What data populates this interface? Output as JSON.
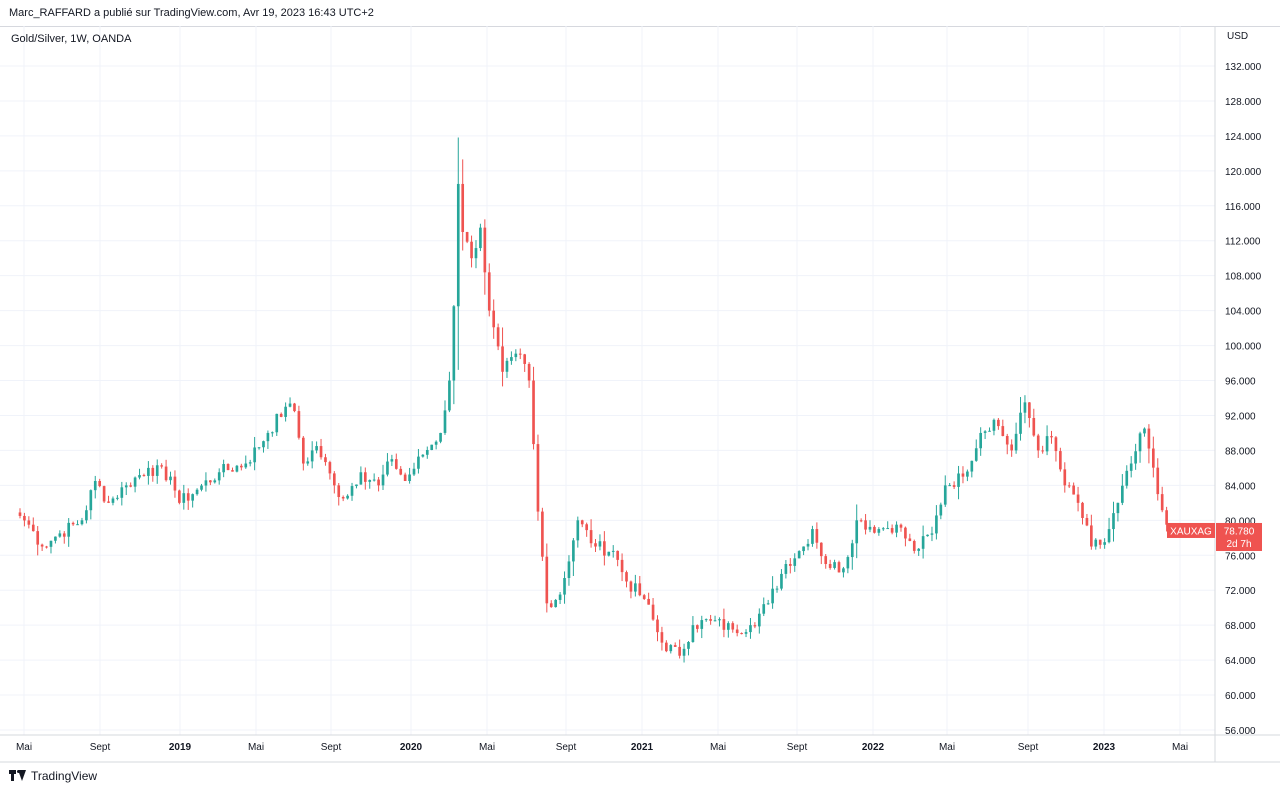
{
  "header": {
    "publisher_line": "Marc_RAFFARD a publié sur TradingView.com, Avr 19, 2023 16:43 UTC+2"
  },
  "chart_header": {
    "symbol_line": "Gold/Silver, 1W, OANDA",
    "currency": "USD"
  },
  "footer": {
    "brand": "TradingView"
  },
  "colors": {
    "up": "#26a69a",
    "down": "#ef5350",
    "grid": "#f0f3fa",
    "axis_text": "#131722",
    "label_bg": "#ef5350",
    "label_text": "#ffffff"
  },
  "chart_data": {
    "type": "candlestick",
    "timeframe": "1W",
    "ylim": [
      56.0,
      132.0
    ],
    "y_ticks": [
      "56.000",
      "60.000",
      "64.000",
      "68.000",
      "72.000",
      "76.000",
      "80.000",
      "84.000",
      "88.000",
      "92.000",
      "96.000",
      "100.000",
      "104.000",
      "108.000",
      "112.000",
      "116.000",
      "120.000",
      "124.000",
      "128.000",
      "132.000"
    ],
    "x_ticks": [
      "Mai",
      "Sept",
      "2019",
      "Mai",
      "Sept",
      "2020",
      "Mai",
      "Sept",
      "2021",
      "Mai",
      "Sept",
      "2022",
      "Mai",
      "Sept",
      "2023",
      "Mai"
    ],
    "last_price_label": {
      "symbol": "XAUXAG",
      "price": "78.780",
      "countdown": "2d 7h"
    },
    "anchors": [
      {
        "date": "2018-04-23",
        "close": 80.5
      },
      {
        "date": "2018-05-07",
        "close": 79.5
      },
      {
        "date": "2018-05-28",
        "close": 77.0
      },
      {
        "date": "2018-06-25",
        "close": 78.5
      },
      {
        "date": "2018-07-30",
        "close": 80.0
      },
      {
        "date": "2018-08-20",
        "close": 84.5
      },
      {
        "date": "2018-09-10",
        "close": 82.0
      },
      {
        "date": "2018-10-08",
        "close": 84.0
      },
      {
        "date": "2018-11-12",
        "close": 86.0
      },
      {
        "date": "2018-12-17",
        "close": 85.0
      },
      {
        "date": "2018-12-31",
        "close": 82.0
      },
      {
        "date": "2019-01-28",
        "close": 83.5
      },
      {
        "date": "2019-03-04",
        "close": 85.5
      },
      {
        "date": "2019-04-15",
        "close": 86.5
      },
      {
        "date": "2019-05-20",
        "close": 90.0
      },
      {
        "date": "2019-06-17",
        "close": 93.0
      },
      {
        "date": "2019-07-01",
        "close": 92.5
      },
      {
        "date": "2019-07-15",
        "close": 86.5
      },
      {
        "date": "2019-08-05",
        "close": 88.5
      },
      {
        "date": "2019-09-02",
        "close": 84.0
      },
      {
        "date": "2019-09-16",
        "close": 82.5
      },
      {
        "date": "2019-10-14",
        "close": 85.5
      },
      {
        "date": "2019-11-11",
        "close": 84.0
      },
      {
        "date": "2019-12-02",
        "close": 87.0
      },
      {
        "date": "2019-12-23",
        "close": 84.5
      },
      {
        "date": "2020-01-20",
        "close": 87.5
      },
      {
        "date": "2020-02-17",
        "close": 90.0
      },
      {
        "date": "2020-03-02",
        "close": 96.0
      },
      {
        "date": "2020-03-09",
        "close": 104.5
      },
      {
        "date": "2020-03-16",
        "close": 118.5
      },
      {
        "date": "2020-03-23",
        "close": 113.0
      },
      {
        "date": "2020-04-06",
        "close": 110.0
      },
      {
        "date": "2020-04-20",
        "close": 113.5
      },
      {
        "date": "2020-05-04",
        "close": 104.0
      },
      {
        "date": "2020-05-25",
        "close": 97.0
      },
      {
        "date": "2020-06-22",
        "close": 99.0
      },
      {
        "date": "2020-07-06",
        "close": 96.0
      },
      {
        "date": "2020-07-20",
        "close": 81.0
      },
      {
        "date": "2020-08-03",
        "close": 70.5
      },
      {
        "date": "2020-08-24",
        "close": 71.5
      },
      {
        "date": "2020-09-21",
        "close": 80.0
      },
      {
        "date": "2020-10-19",
        "close": 77.0
      },
      {
        "date": "2020-11-16",
        "close": 76.5
      },
      {
        "date": "2020-12-07",
        "close": 73.0
      },
      {
        "date": "2021-01-04",
        "close": 71.0
      },
      {
        "date": "2021-02-01",
        "close": 66.0
      },
      {
        "date": "2021-03-01",
        "close": 64.5
      },
      {
        "date": "2021-03-22",
        "close": 68.0
      },
      {
        "date": "2021-04-19",
        "close": 68.5
      },
      {
        "date": "2021-05-24",
        "close": 67.5
      },
      {
        "date": "2021-06-21",
        "close": 68.0
      },
      {
        "date": "2021-07-19",
        "close": 70.5
      },
      {
        "date": "2021-08-16",
        "close": 75.0
      },
      {
        "date": "2021-09-13",
        "close": 77.0
      },
      {
        "date": "2021-09-27",
        "close": 79.0
      },
      {
        "date": "2021-10-18",
        "close": 75.0
      },
      {
        "date": "2021-11-15",
        "close": 74.5
      },
      {
        "date": "2021-12-06",
        "close": 80.0
      },
      {
        "date": "2022-01-10",
        "close": 79.0
      },
      {
        "date": "2022-02-07",
        "close": 79.5
      },
      {
        "date": "2022-03-07",
        "close": 76.5
      },
      {
        "date": "2022-04-04",
        "close": 78.5
      },
      {
        "date": "2022-04-25",
        "close": 84.0
      },
      {
        "date": "2022-05-23",
        "close": 85.0
      },
      {
        "date": "2022-06-20",
        "close": 90.0
      },
      {
        "date": "2022-07-11",
        "close": 91.5
      },
      {
        "date": "2022-08-08",
        "close": 88.0
      },
      {
        "date": "2022-08-29",
        "close": 93.5
      },
      {
        "date": "2022-09-19",
        "close": 88.0
      },
      {
        "date": "2022-10-10",
        "close": 89.5
      },
      {
        "date": "2022-10-31",
        "close": 84.0
      },
      {
        "date": "2022-11-21",
        "close": 82.0
      },
      {
        "date": "2022-12-12",
        "close": 77.0
      },
      {
        "date": "2023-01-02",
        "close": 77.5
      },
      {
        "date": "2023-01-23",
        "close": 82.0
      },
      {
        "date": "2023-02-13",
        "close": 86.5
      },
      {
        "date": "2023-03-06",
        "close": 90.5
      },
      {
        "date": "2023-03-27",
        "close": 83.0
      },
      {
        "date": "2023-04-10",
        "close": 79.5
      },
      {
        "date": "2023-04-17",
        "close": 78.78
      }
    ]
  }
}
